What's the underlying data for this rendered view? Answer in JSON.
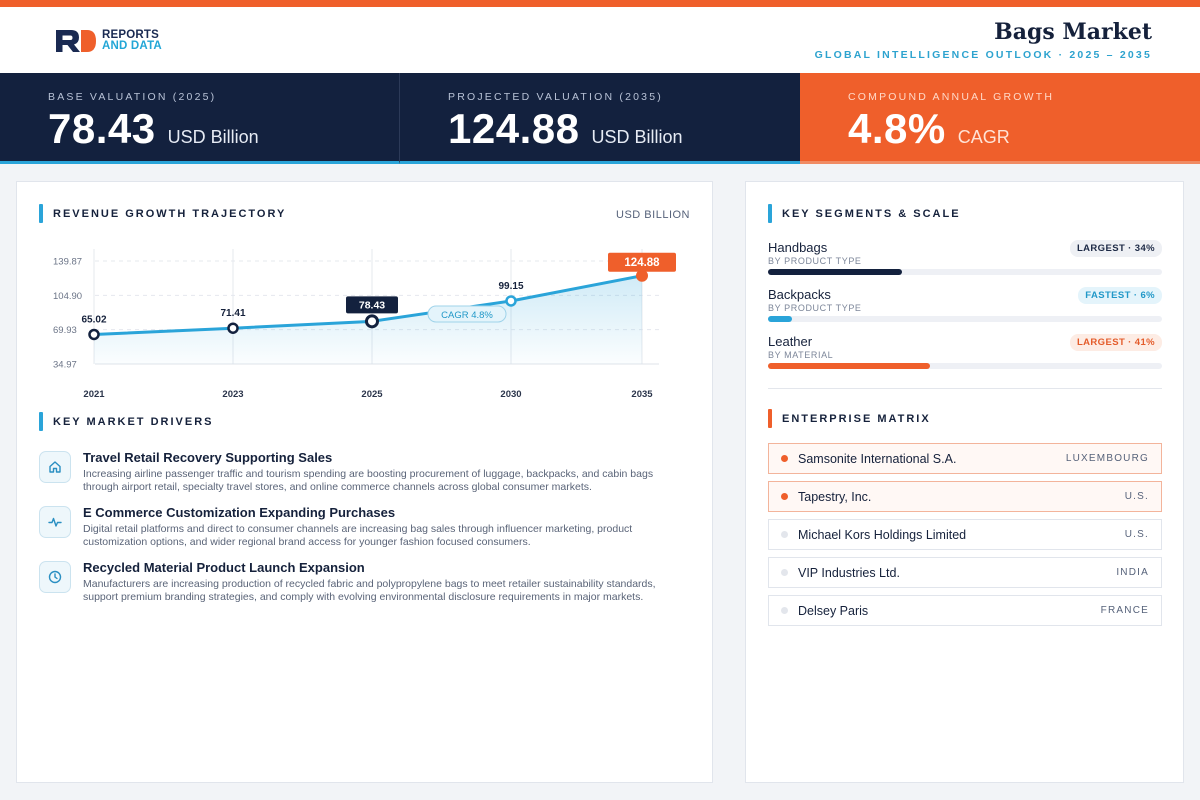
{
  "header": {
    "logo_line1": "REPORTS",
    "logo_line2": "AND DATA",
    "title": "Bags Market",
    "subtitle": "GLOBAL INTELLIGENCE OUTLOOK  ·  2025 – 2035"
  },
  "kpis": [
    {
      "label": "BASE VALUATION (2025)",
      "value": "78.43",
      "unit": "USD Billion"
    },
    {
      "label": "PROJECTED VALUATION (2035)",
      "value": "124.88",
      "unit": "USD Billion"
    },
    {
      "label": "COMPOUND ANNUAL GROWTH",
      "value": "4.8%",
      "unit": "CAGR"
    }
  ],
  "revenue": {
    "section_title": "REVENUE GROWTH TRAJECTORY",
    "unit_label": "USD BILLION",
    "cagr_badge": "CAGR 4.8%"
  },
  "chart_data": {
    "type": "line",
    "x": [
      "2021",
      "2023",
      "2025",
      "2030",
      "2035"
    ],
    "values": [
      65.02,
      71.41,
      78.43,
      99.15,
      124.88
    ],
    "data_labels": [
      "65.02",
      "71.41",
      "78.43",
      "99.15",
      "124.88"
    ],
    "y_ticks": [
      34.97,
      69.93,
      104.9,
      139.87
    ],
    "y_tick_labels": [
      "34.97",
      "69.93",
      "104.90",
      "139.87"
    ],
    "ylim": [
      34.97,
      139.87
    ],
    "grid": true,
    "colors": {
      "line": "#2aa4d9",
      "highlight": "#13213e",
      "final": "#ef5f2b"
    }
  },
  "drivers": {
    "section_title": "KEY MARKET DRIVERS",
    "items": [
      {
        "icon": "home-icon",
        "title": "Travel Retail Recovery Supporting Sales",
        "desc": "Increasing airline passenger traffic and tourism spending are boosting procurement of luggage, backpacks, and cabin bags through airport retail, specialty travel stores, and online commerce channels across global consumer markets."
      },
      {
        "icon": "pulse-icon",
        "title": "E Commerce Customization Expanding Purchases",
        "desc": "Digital retail platforms and direct to consumer channels are increasing bag sales through influencer marketing, product customization options, and wider regional brand access for younger fashion focused consumers."
      },
      {
        "icon": "clock-icon",
        "title": "Recycled Material Product Launch Expansion",
        "desc": "Manufacturers are increasing production of recycled fabric and polypropylene bags to meet retailer sustainability standards, support premium branding strategies, and comply with evolving environmental disclosure requirements in major markets."
      }
    ]
  },
  "segments": {
    "section_title": "KEY SEGMENTS & SCALE",
    "items": [
      {
        "name": "Handbags",
        "sub": "BY PRODUCT TYPE",
        "badge": "LARGEST · 34%",
        "share": 0.34,
        "color": "navy"
      },
      {
        "name": "Backpacks",
        "sub": "BY PRODUCT TYPE",
        "badge": "FASTEST · 6%",
        "share": 0.06,
        "color": "cyan"
      },
      {
        "name": "Leather",
        "sub": "BY MATERIAL",
        "badge": "LARGEST · 41%",
        "share": 0.41,
        "color": "orange"
      }
    ]
  },
  "matrix": {
    "section_title": "ENTERPRISE MATRIX",
    "items": [
      {
        "name": "Samsonite International S.A.",
        "country": "LUXEMBOURG",
        "highlight": true
      },
      {
        "name": "Tapestry, Inc.",
        "country": "U.S.",
        "highlight": true
      },
      {
        "name": "Michael Kors Holdings Limited",
        "country": "U.S.",
        "highlight": false
      },
      {
        "name": "VIP Industries Ltd.",
        "country": "INDIA",
        "highlight": false
      },
      {
        "name": "Delsey Paris",
        "country": "FRANCE",
        "highlight": false
      }
    ]
  }
}
